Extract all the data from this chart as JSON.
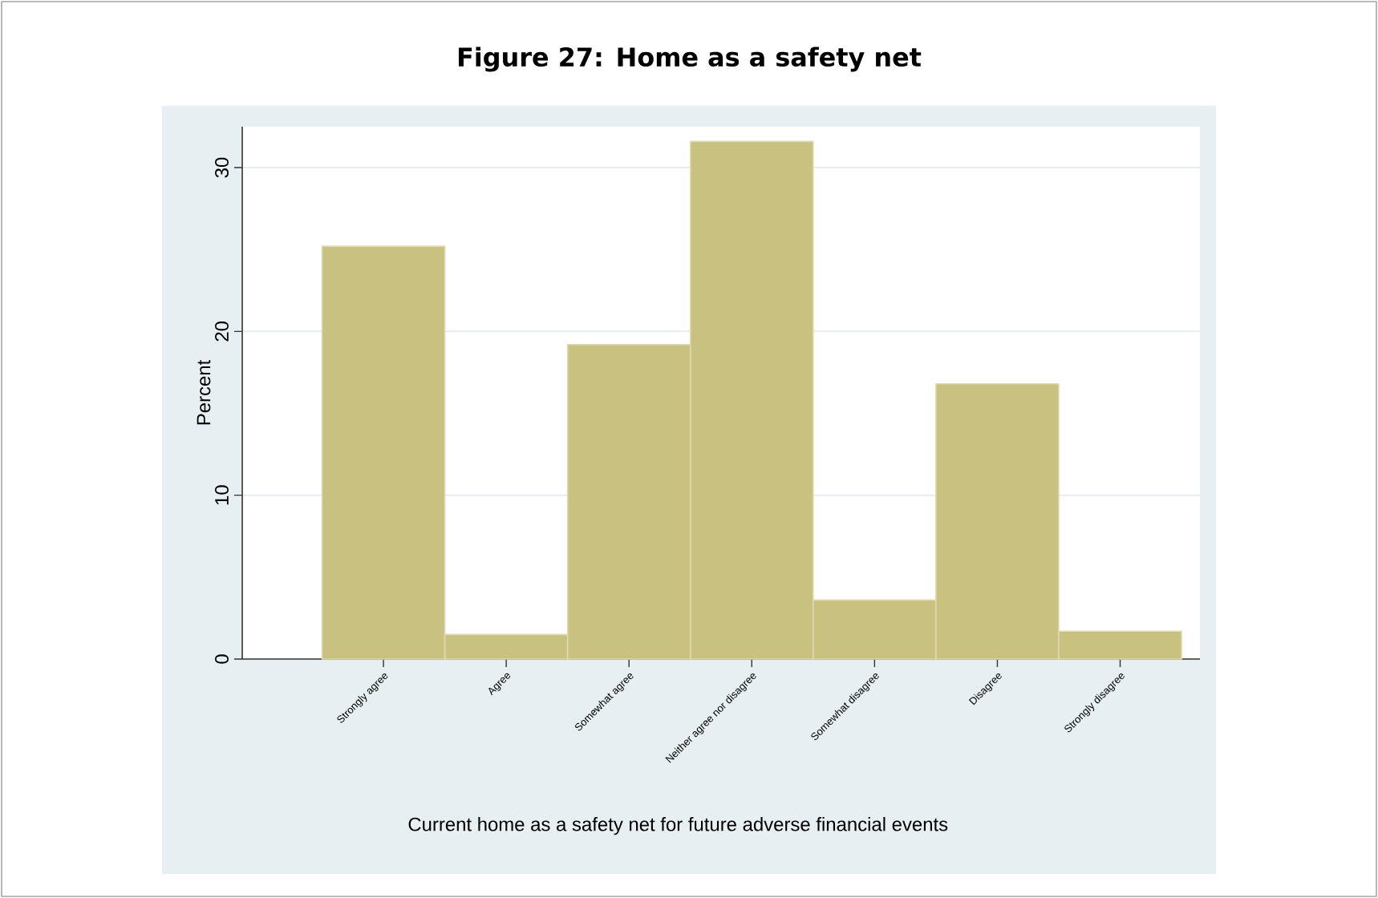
{
  "chart_data": {
    "type": "bar",
    "title": "Figure 27: Home as a safety net",
    "xlabel": "Current home as a safety net for future adverse financial events",
    "ylabel": "Percent",
    "categories": [
      "Strongly agree",
      "Agree",
      "Somewhat agree",
      "Neither agree nor disagree",
      "Somewhat disagree",
      "Disagree",
      "Strongly disagree"
    ],
    "values": [
      25.2,
      1.5,
      19.2,
      31.6,
      3.6,
      16.8,
      1.7
    ],
    "color": "#c9c17f",
    "ylim": [
      0,
      32.5
    ],
    "yticks": [
      0,
      10,
      20,
      30
    ],
    "grid": "y"
  }
}
